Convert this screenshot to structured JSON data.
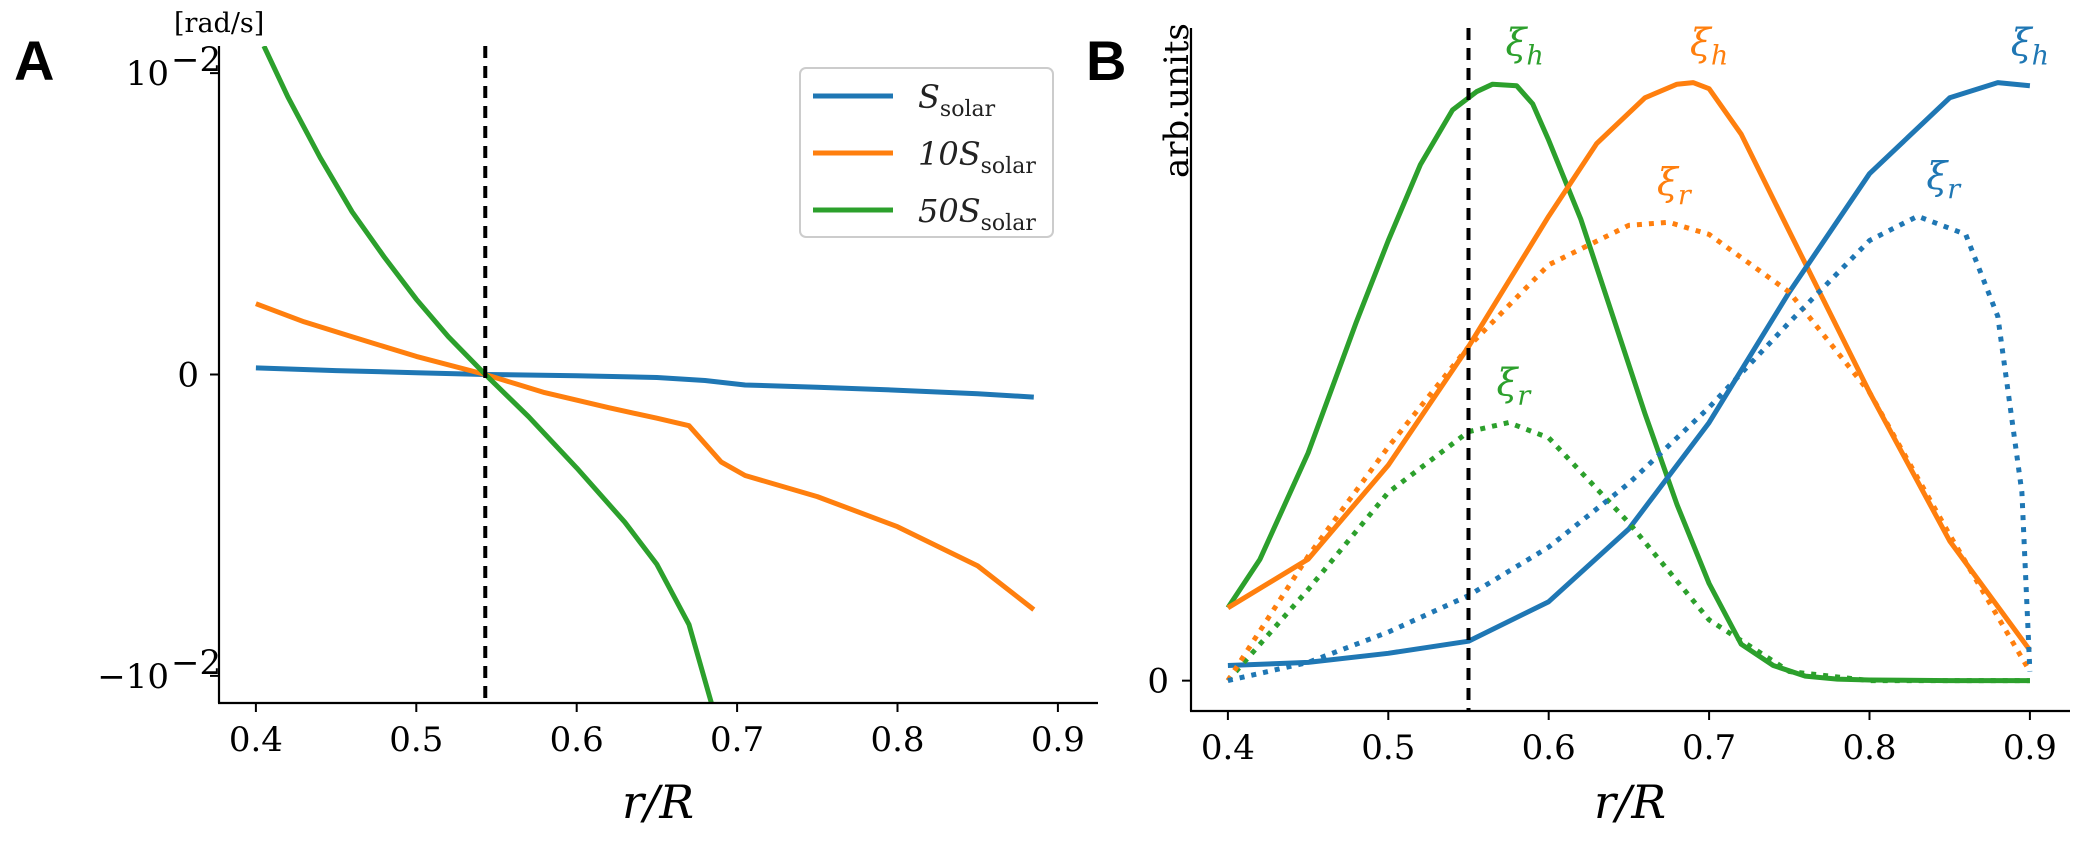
{
  "chart_data": [
    {
      "panel": "A",
      "type": "line",
      "title": "",
      "unit_label": "[rad/s]",
      "xlabel": "r/R",
      "ylabel": "",
      "xlim": [
        0.377,
        0.925
      ],
      "ylim": [
        -1.09,
        1.09
      ],
      "y_scale": "symlog",
      "xticks": [
        0.4,
        0.5,
        0.6,
        0.7,
        0.8,
        0.9
      ],
      "xtick_labels": [
        "0.4",
        "0.5",
        "0.6",
        "0.7",
        "0.8",
        "0.9"
      ],
      "yticks": [
        1,
        0,
        -1
      ],
      "ytick_labels": [
        "10",
        "0",
        "−10"
      ],
      "ytick_exponent": "−2",
      "vline_x": 0.543,
      "legend": {
        "position": "top-right",
        "entries": [
          "S",
          "10S",
          "50S"
        ],
        "subscript": "solar"
      },
      "series": [
        {
          "name": "S_solar",
          "color": "#1f77b4",
          "x": [
            0.4,
            0.45,
            0.5,
            0.543,
            0.6,
            0.65,
            0.68,
            0.705,
            0.75,
            0.8,
            0.85,
            0.885
          ],
          "y": [
            0.022,
            0.013,
            0.006,
            0.0,
            -0.004,
            -0.01,
            -0.02,
            -0.035,
            -0.042,
            -0.052,
            -0.064,
            -0.075
          ]
        },
        {
          "name": "10S_solar",
          "color": "#ff7f0e",
          "x": [
            0.4,
            0.43,
            0.46,
            0.5,
            0.543,
            0.58,
            0.62,
            0.65,
            0.67,
            0.69,
            0.705,
            0.75,
            0.8,
            0.85,
            0.885
          ],
          "y": [
            0.235,
            0.175,
            0.125,
            0.06,
            0.0,
            -0.06,
            -0.11,
            -0.145,
            -0.17,
            -0.29,
            -0.335,
            -0.405,
            -0.505,
            -0.635,
            -0.78
          ]
        },
        {
          "name": "50S_solar",
          "color": "#2ca02c",
          "x": [
            0.405,
            0.42,
            0.44,
            0.46,
            0.48,
            0.5,
            0.52,
            0.543,
            0.57,
            0.6,
            0.63,
            0.65,
            0.67,
            0.684
          ],
          "y": [
            1.09,
            0.92,
            0.72,
            0.54,
            0.39,
            0.25,
            0.125,
            0.0,
            -0.14,
            -0.31,
            -0.49,
            -0.63,
            -0.83,
            -1.09
          ]
        }
      ]
    },
    {
      "panel": "B",
      "type": "line",
      "title": "",
      "xlabel": "r/R",
      "ylabel": "arb.units",
      "xlim": [
        0.377,
        0.925
      ],
      "ylim": [
        -0.1,
        2.15
      ],
      "xticks": [
        0.4,
        0.5,
        0.6,
        0.7,
        0.8,
        0.9
      ],
      "xtick_labels": [
        "0.4",
        "0.5",
        "0.6",
        "0.7",
        "0.8",
        "0.9"
      ],
      "yticks": [
        0
      ],
      "ytick_labels": [
        "0"
      ],
      "vline_x": 0.55,
      "series": [
        {
          "name": "xi_h (50S_solar)",
          "color": "#2ca02c",
          "style": "solid",
          "x": [
            0.4,
            0.42,
            0.45,
            0.48,
            0.5,
            0.52,
            0.54,
            0.555,
            0.565,
            0.58,
            0.59,
            0.6,
            0.62,
            0.64,
            0.66,
            0.68,
            0.7,
            0.72,
            0.74,
            0.76,
            0.78,
            0.8,
            0.85,
            0.9
          ],
          "y": [
            0.24,
            0.4,
            0.75,
            1.18,
            1.45,
            1.7,
            1.88,
            1.94,
            1.965,
            1.96,
            1.9,
            1.78,
            1.52,
            1.2,
            0.88,
            0.58,
            0.32,
            0.12,
            0.05,
            0.015,
            0.005,
            0.002,
            0.0,
            0.0
          ]
        },
        {
          "name": "xi_h (10S_solar)",
          "color": "#ff7f0e",
          "style": "solid",
          "x": [
            0.4,
            0.45,
            0.5,
            0.55,
            0.6,
            0.63,
            0.66,
            0.68,
            0.69,
            0.7,
            0.72,
            0.75,
            0.8,
            0.85,
            0.9
          ],
          "y": [
            0.24,
            0.4,
            0.71,
            1.1,
            1.53,
            1.77,
            1.92,
            1.965,
            1.97,
            1.95,
            1.8,
            1.48,
            0.95,
            0.46,
            0.1
          ]
        },
        {
          "name": "xi_h (S_solar)",
          "color": "#1f77b4",
          "style": "solid",
          "x": [
            0.4,
            0.45,
            0.5,
            0.55,
            0.6,
            0.65,
            0.7,
            0.75,
            0.8,
            0.85,
            0.88,
            0.9
          ],
          "y": [
            0.05,
            0.06,
            0.09,
            0.13,
            0.26,
            0.5,
            0.85,
            1.28,
            1.67,
            1.92,
            1.97,
            1.96
          ]
        },
        {
          "name": "xi_r (50S_solar)",
          "color": "#2ca02c",
          "style": "dotted",
          "x": [
            0.4,
            0.45,
            0.5,
            0.55,
            0.575,
            0.6,
            0.65,
            0.7,
            0.75,
            0.8,
            0.85,
            0.9
          ],
          "y": [
            0.0,
            0.3,
            0.62,
            0.82,
            0.85,
            0.8,
            0.52,
            0.2,
            0.03,
            0.0,
            0.0,
            0.0
          ]
        },
        {
          "name": "xi_r (10S_solar)",
          "color": "#ff7f0e",
          "style": "dotted",
          "x": [
            0.4,
            0.45,
            0.5,
            0.55,
            0.6,
            0.65,
            0.675,
            0.7,
            0.75,
            0.8,
            0.85,
            0.9
          ],
          "y": [
            0.0,
            0.41,
            0.77,
            1.1,
            1.37,
            1.5,
            1.51,
            1.47,
            1.28,
            0.95,
            0.48,
            0.03
          ]
        },
        {
          "name": "xi_r (S_solar)",
          "color": "#1f77b4",
          "style": "dotted",
          "x": [
            0.4,
            0.45,
            0.5,
            0.55,
            0.6,
            0.65,
            0.7,
            0.75,
            0.8,
            0.83,
            0.86,
            0.88,
            0.895,
            0.9
          ],
          "y": [
            0.0,
            0.06,
            0.16,
            0.28,
            0.44,
            0.65,
            0.9,
            1.18,
            1.45,
            1.53,
            1.47,
            1.2,
            0.62,
            0.03
          ]
        }
      ],
      "annotations": [
        {
          "text": "ξ",
          "sub": "h",
          "color": "#2ca02c",
          "x": 0.585,
          "y": 2.06
        },
        {
          "text": "ξ",
          "sub": "h",
          "color": "#ff7f0e",
          "x": 0.7,
          "y": 2.06
        },
        {
          "text": "ξ",
          "sub": "h",
          "color": "#1f77b4",
          "x": 0.9,
          "y": 2.06
        },
        {
          "text": "ξ",
          "sub": "r",
          "color": "#ff7f0e",
          "x": 0.678,
          "y": 1.6
        },
        {
          "text": "ξ",
          "sub": "r",
          "color": "#1f77b4",
          "x": 0.846,
          "y": 1.62
        },
        {
          "text": "ξ",
          "sub": "r",
          "color": "#2ca02c",
          "x": 0.578,
          "y": 0.94
        }
      ]
    }
  ]
}
